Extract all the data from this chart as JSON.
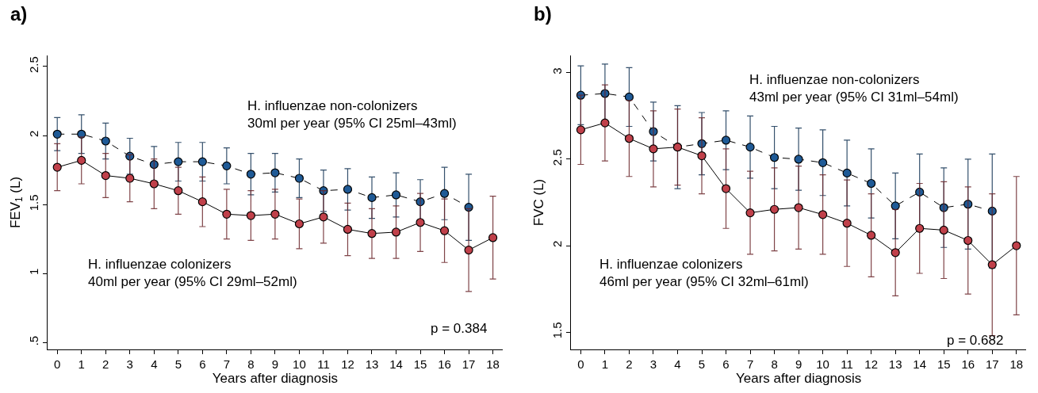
{
  "chart_data": [
    {
      "type": "line",
      "title": "a)",
      "xlabel": "Years after diagnosis",
      "ylabel": "FEV$_{1}$ (L)",
      "x": [
        0,
        1,
        2,
        3,
        4,
        5,
        6,
        7,
        8,
        9,
        10,
        11,
        12,
        13,
        14,
        15,
        16,
        17,
        18
      ],
      "xlim": [
        -0.4,
        18.4
      ],
      "xticks": [
        0,
        1,
        2,
        3,
        4,
        5,
        6,
        7,
        8,
        9,
        10,
        11,
        12,
        13,
        14,
        15,
        16,
        17,
        18
      ],
      "ylim": [
        0.45,
        2.58
      ],
      "yticks": [
        {
          "value": 0.5,
          "label": ".5"
        },
        1,
        1.5,
        2,
        2.5
      ],
      "marker": "circle",
      "series": [
        {
          "color": "#1f5a96",
          "line_style": "dashed",
          "values": [
            2.01,
            2.01,
            1.96,
            1.85,
            1.79,
            1.81,
            1.81,
            1.78,
            1.72,
            1.73,
            1.69,
            1.6,
            1.61,
            1.55,
            1.57,
            1.52,
            1.58,
            1.48,
            null
          ],
          "errors": [
            0.12,
            0.14,
            0.13,
            0.13,
            0.13,
            0.14,
            0.14,
            0.13,
            0.15,
            0.14,
            0.14,
            0.15,
            0.15,
            0.15,
            0.16,
            0.16,
            0.19,
            0.24,
            null
          ]
        },
        {
          "color": "#c0404a",
          "line_style": "solid",
          "values": [
            1.77,
            1.82,
            1.71,
            1.69,
            1.65,
            1.6,
            1.52,
            1.43,
            1.42,
            1.43,
            1.36,
            1.41,
            1.32,
            1.29,
            1.3,
            1.37,
            1.31,
            1.17,
            1.26
          ],
          "errors": [
            0.17,
            0.17,
            0.16,
            0.17,
            0.18,
            0.17,
            0.18,
            0.18,
            0.18,
            0.18,
            0.18,
            0.19,
            0.19,
            0.18,
            0.19,
            0.21,
            0.23,
            0.3,
            0.3
          ]
        }
      ],
      "annotations": [
        "H. influenzae non-colonizers\n30ml per year (95% CI 25ml–43ml)",
        "H. influenzae colonizers\n40ml per year (95% CI 29ml–52ml)",
        "p = 0.384"
      ]
    },
    {
      "type": "line",
      "title": "b)",
      "xlabel": "Years after diagnosis",
      "ylabel": "FVC (L)",
      "x": [
        0,
        1,
        2,
        3,
        4,
        5,
        6,
        7,
        8,
        9,
        10,
        11,
        12,
        13,
        14,
        15,
        16,
        17,
        18
      ],
      "xlim": [
        -0.4,
        18.4
      ],
      "xticks": [
        0,
        1,
        2,
        3,
        4,
        5,
        6,
        7,
        8,
        9,
        10,
        11,
        12,
        13,
        14,
        15,
        16,
        17,
        18
      ],
      "ylim": [
        1.4,
        3.1
      ],
      "yticks": [
        1.5,
        2,
        2.5,
        3
      ],
      "marker": "circle",
      "series": [
        {
          "color": "#1f5a96",
          "line_style": "dashed",
          "values": [
            2.87,
            2.88,
            2.86,
            2.66,
            2.57,
            2.59,
            2.61,
            2.57,
            2.51,
            2.5,
            2.48,
            2.42,
            2.36,
            2.23,
            2.31,
            2.22,
            2.24,
            2.2,
            null
          ],
          "errors": [
            0.17,
            0.17,
            0.17,
            0.17,
            0.24,
            0.18,
            0.17,
            0.18,
            0.18,
            0.18,
            0.19,
            0.19,
            0.2,
            0.19,
            0.22,
            0.23,
            0.26,
            0.33,
            null
          ]
        },
        {
          "color": "#c0404a",
          "line_style": "solid",
          "values": [
            2.67,
            2.71,
            2.62,
            2.56,
            2.57,
            2.52,
            2.33,
            2.19,
            2.21,
            2.22,
            2.18,
            2.13,
            2.06,
            1.96,
            2.1,
            2.09,
            2.03,
            1.89,
            2.0
          ],
          "errors": [
            0.2,
            0.22,
            0.22,
            0.22,
            0.22,
            0.22,
            0.23,
            0.24,
            0.24,
            0.24,
            0.23,
            0.25,
            0.24,
            0.25,
            0.26,
            0.28,
            0.31,
            0.41,
            0.4
          ]
        }
      ],
      "annotations": [
        "H. influenzae non-colonizers\n43ml per year (95% CI 31ml–54ml)",
        "H. influenzae colonizers\n46ml per year (95% CI 32ml–61ml)",
        "p = 0.682"
      ]
    }
  ]
}
